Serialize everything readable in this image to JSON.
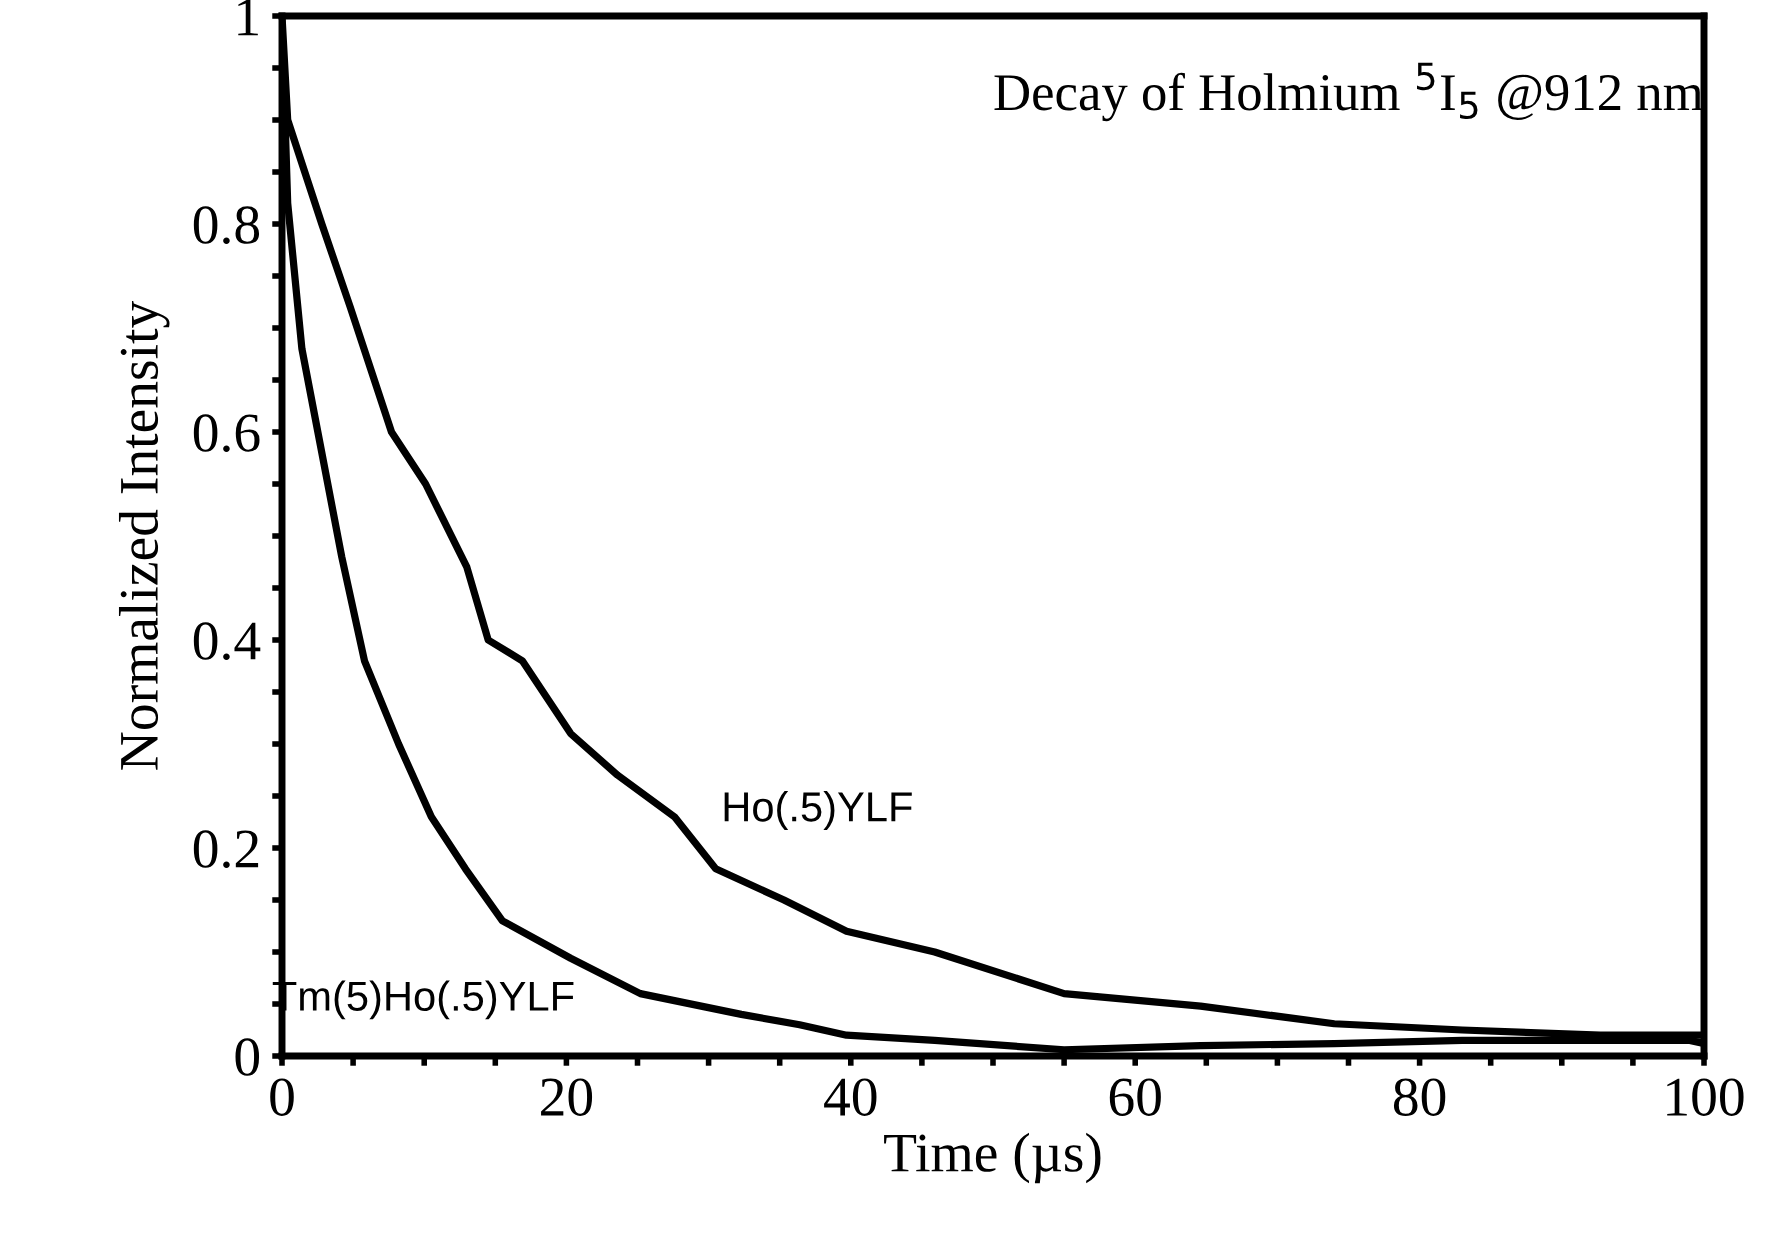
{
  "chart_data": {
    "type": "line",
    "title": "Decay of Holmium $^{5}$I$_{5}$ @912 nm",
    "xlabel": "Time (µs)",
    "ylabel": "Normalized Intensity",
    "xlim": [
      0,
      100
    ],
    "ylim": [
      0,
      1
    ],
    "xticks": [
      0,
      {
        "value": 5,
        "label": null
      },
      {
        "value": 10,
        "label": null
      },
      {
        "value": 15,
        "label": null
      },
      20,
      {
        "value": 25,
        "label": null
      },
      {
        "value": 30,
        "label": null
      },
      {
        "value": 35,
        "label": null
      },
      40,
      {
        "value": 45,
        "label": null
      },
      {
        "value": 50,
        "label": null
      },
      {
        "value": 55,
        "label": null
      },
      60,
      {
        "value": 65,
        "label": null
      },
      {
        "value": 70,
        "label": null
      },
      {
        "value": 75,
        "label": null
      },
      80,
      {
        "value": 85,
        "label": null
      },
      {
        "value": 90,
        "label": null
      },
      {
        "value": 95,
        "label": null
      },
      100
    ],
    "yticks": [
      0,
      {
        "value": 0.05,
        "label": null
      },
      {
        "value": 0.1,
        "label": null
      },
      {
        "value": 0.15,
        "label": null
      },
      0.2,
      {
        "value": 0.25,
        "label": null
      },
      {
        "value": 0.3,
        "label": null
      },
      {
        "value": 0.35,
        "label": null
      },
      0.4,
      {
        "value": 0.45,
        "label": null
      },
      {
        "value": 0.5,
        "label": null
      },
      {
        "value": 0.55,
        "label": null
      },
      0.6,
      {
        "value": 0.65,
        "label": null
      },
      {
        "value": 0.7,
        "label": null
      },
      {
        "value": 0.75,
        "label": null
      },
      0.8,
      {
        "value": 0.85,
        "label": null
      },
      {
        "value": 0.9,
        "label": null
      },
      {
        "value": 0.95,
        "label": null
      },
      1
    ],
    "grid": false,
    "legend": false,
    "marker": "none",
    "line_style": "solid",
    "series": [
      {
        "name": "Ho(.5)YLF",
        "color": "#000000",
        "x": [
          0,
          0.4,
          2.8,
          4.8,
          7.7,
          10.1,
          13,
          14.5,
          16.9,
          20.3,
          23.6,
          27.6,
          30.5,
          35.3,
          39.7,
          45.9,
          55,
          64.6,
          74,
          83,
          92.7,
          99,
          100
        ],
        "values": [
          1.0,
          0.9,
          0.8,
          0.72,
          0.6,
          0.55,
          0.47,
          0.4,
          0.38,
          0.31,
          0.27,
          0.23,
          0.18,
          0.15,
          0.12,
          0.1,
          0.06,
          0.048,
          0.031,
          0.025,
          0.02,
          0.02,
          0.02
        ]
      },
      {
        "name": "Tm(5)Ho(.5)YLF",
        "color": "#000000",
        "x": [
          0.1,
          0.4,
          1.4,
          2.8,
          4.2,
          5.8,
          8.2,
          10.5,
          12.9,
          15.5,
          20.3,
          25.2,
          32.3,
          36.4,
          39.7,
          45.9,
          55,
          64.6,
          74,
          83,
          99,
          100
        ],
        "values": [
          0.95,
          0.82,
          0.68,
          0.58,
          0.48,
          0.38,
          0.3,
          0.23,
          0.18,
          0.13,
          0.094,
          0.06,
          0.04,
          0.03,
          0.02,
          0.015,
          0.006,
          0.01,
          0.012,
          0.015,
          0.015,
          0.012
        ]
      }
    ]
  }
}
